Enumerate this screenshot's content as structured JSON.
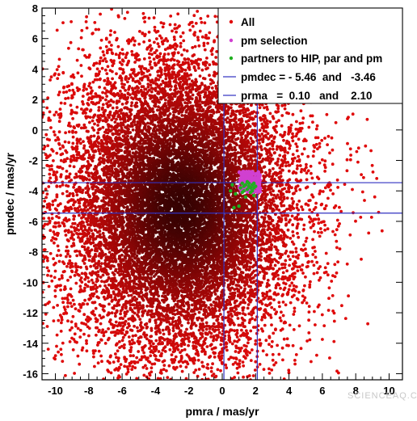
{
  "chart_data": {
    "type": "scatter",
    "xlabel": "pmra / mas/yr",
    "ylabel": "pmdec / mas/yr",
    "xlim": [
      -10.8,
      10.8
    ],
    "ylim": [
      -16.4,
      8
    ],
    "x_ticks": [
      -10,
      -8,
      -6,
      -4,
      -2,
      0,
      2,
      4,
      6,
      8,
      10
    ],
    "y_ticks": [
      8,
      6,
      4,
      2,
      0,
      -2,
      -4,
      -6,
      -8,
      -10,
      -12,
      -14,
      -16
    ],
    "legend_position": "top-right",
    "grid": false,
    "series": [
      {
        "name": "All",
        "color": "#e00000",
        "marker": "dot",
        "distribution": {
          "center_x": -2.5,
          "center_y": -5.0,
          "sigma_x": 3.6,
          "sigma_y": 5.2
        },
        "point_count_approx": 14000
      },
      {
        "name": "pm selection",
        "color": "#d040d0",
        "marker": "dot",
        "x_range": [
          1.0,
          2.3
        ],
        "y_range": [
          -4.1,
          -2.7
        ]
      },
      {
        "name": "partners to HIP, par and pm",
        "color": "#20b020",
        "marker": "dot",
        "points": [
          [
            1.2,
            -3.5
          ],
          [
            1.4,
            -3.6
          ],
          [
            1.6,
            -3.7
          ],
          [
            1.8,
            -3.6
          ],
          [
            1.9,
            -3.8
          ],
          [
            1.5,
            -3.9
          ],
          [
            1.3,
            -4.0
          ],
          [
            1.7,
            -4.1
          ],
          [
            2.0,
            -3.7
          ],
          [
            1.1,
            -3.8
          ],
          [
            1.6,
            -3.5
          ],
          [
            1.8,
            -4.0
          ],
          [
            0.6,
            -3.6
          ],
          [
            0.8,
            -4.2
          ],
          [
            1.4,
            -4.4
          ],
          [
            1.0,
            -5.0
          ],
          [
            0.7,
            -5.1
          ],
          [
            1.9,
            -4.3
          ],
          [
            1.2,
            -4.1
          ],
          [
            1.5,
            -3.4
          ],
          [
            1.7,
            -3.8
          ],
          [
            1.3,
            -3.7
          ],
          [
            1.9,
            -3.5
          ],
          [
            0.5,
            -4.0
          ]
        ]
      }
    ],
    "reference_lines": [
      {
        "name": "pmdec = - 5.46  and   -3.46",
        "axis": "y",
        "values": [
          -5.46,
          -3.46
        ],
        "color": "#3030c0"
      },
      {
        "name": "prma   =  0.10   and    2.10",
        "axis": "x",
        "values": [
          0.1,
          2.1
        ],
        "color": "#3030c0"
      }
    ]
  },
  "watermark": "SCIENCEAQ.COM"
}
